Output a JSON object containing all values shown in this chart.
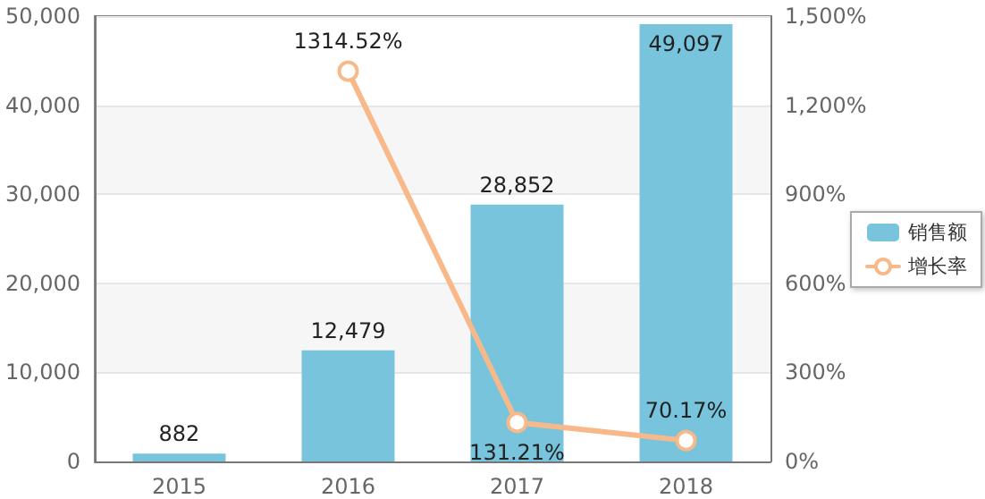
{
  "chart_data": {
    "type": "bar",
    "categories": [
      "2015",
      "2016",
      "2017",
      "2018"
    ],
    "series": [
      {
        "name": "销售额",
        "color": "#77c4dc",
        "values": [
          882,
          12479,
          28852,
          49097
        ],
        "value_labels": [
          "882",
          "12,479",
          "28,852",
          "49,097"
        ]
      },
      {
        "name": "增长率",
        "type": "line",
        "axis": "y2",
        "color": "#f7b98a",
        "values": [
          null,
          1314.52,
          131.21,
          70.17
        ],
        "value_labels": [
          null,
          "1314.52%",
          "131.21%",
          "70.17%"
        ]
      }
    ],
    "ylim": [
      0,
      50000
    ],
    "yticks": [
      0,
      {
        "value": 10000,
        "label": "10,000"
      },
      {
        "value": 20000,
        "label": "20,000"
      },
      {
        "value": 30000,
        "label": "30,000"
      },
      {
        "value": 40000,
        "label": "40,000"
      },
      {
        "value": 50000,
        "label": "50,000"
      }
    ],
    "y2lim": [
      0,
      1500
    ],
    "y2ticks": [
      {
        "value": 0,
        "label": "0%"
      },
      {
        "value": 300,
        "label": "300%"
      },
      {
        "value": 600,
        "label": "600%"
      },
      {
        "value": 900,
        "label": "900%"
      },
      {
        "value": 1200,
        "label": "1,200%"
      },
      {
        "value": 1500,
        "label": "1,500%"
      }
    ],
    "grid": "y",
    "legend": "right",
    "marker": "circle",
    "line_style": "solid"
  }
}
